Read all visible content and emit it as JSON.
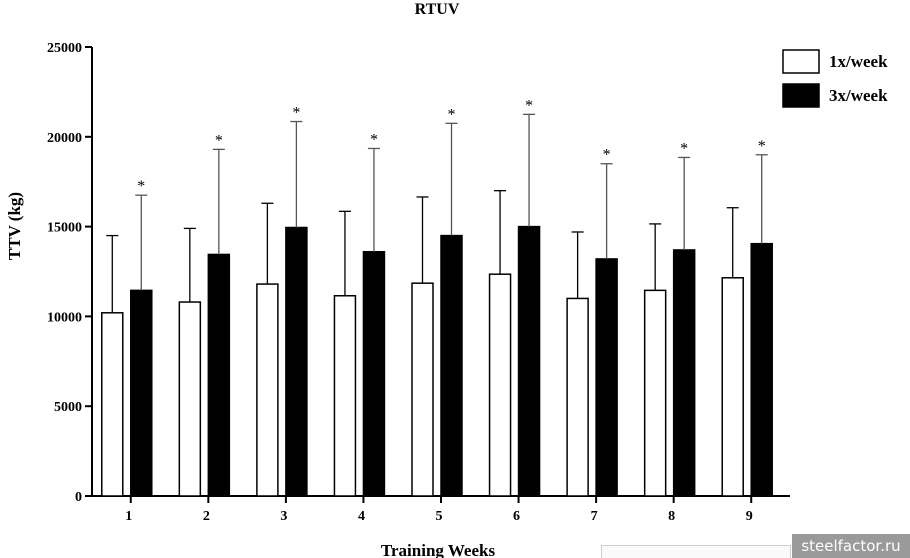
{
  "chart_data": {
    "type": "bar",
    "title": "RTUV",
    "xlabel": "Training Weeks",
    "ylabel": "TTV (kg)",
    "ylim": [
      0,
      25000
    ],
    "yticks": [
      0,
      5000,
      10000,
      15000,
      20000,
      25000
    ],
    "categories": [
      "1",
      "2",
      "3",
      "4",
      "5",
      "6",
      "7",
      "8",
      "9"
    ],
    "series": [
      {
        "name": "1x/week",
        "color": "#ffffff",
        "values": [
          10200,
          10800,
          11800,
          11150,
          11850,
          12350,
          11000,
          11450,
          12150
        ],
        "error": [
          4300,
          4100,
          4500,
          4700,
          4800,
          4650,
          3700,
          3700,
          3900
        ]
      },
      {
        "name": "3x/week",
        "color": "#000000",
        "values": [
          11450,
          13450,
          14950,
          13600,
          14500,
          15000,
          13200,
          13700,
          14050
        ],
        "error": [
          5300,
          5850,
          5900,
          5750,
          6250,
          6250,
          5300,
          5150,
          4950
        ]
      }
    ],
    "annotations": {
      "marker": "*",
      "on_series": "3x/week",
      "categories": [
        "1",
        "2",
        "3",
        "4",
        "5",
        "6",
        "7",
        "8",
        "9"
      ]
    },
    "legend_position": "top-right",
    "grid": false
  },
  "watermark": "steelfactor.ru"
}
